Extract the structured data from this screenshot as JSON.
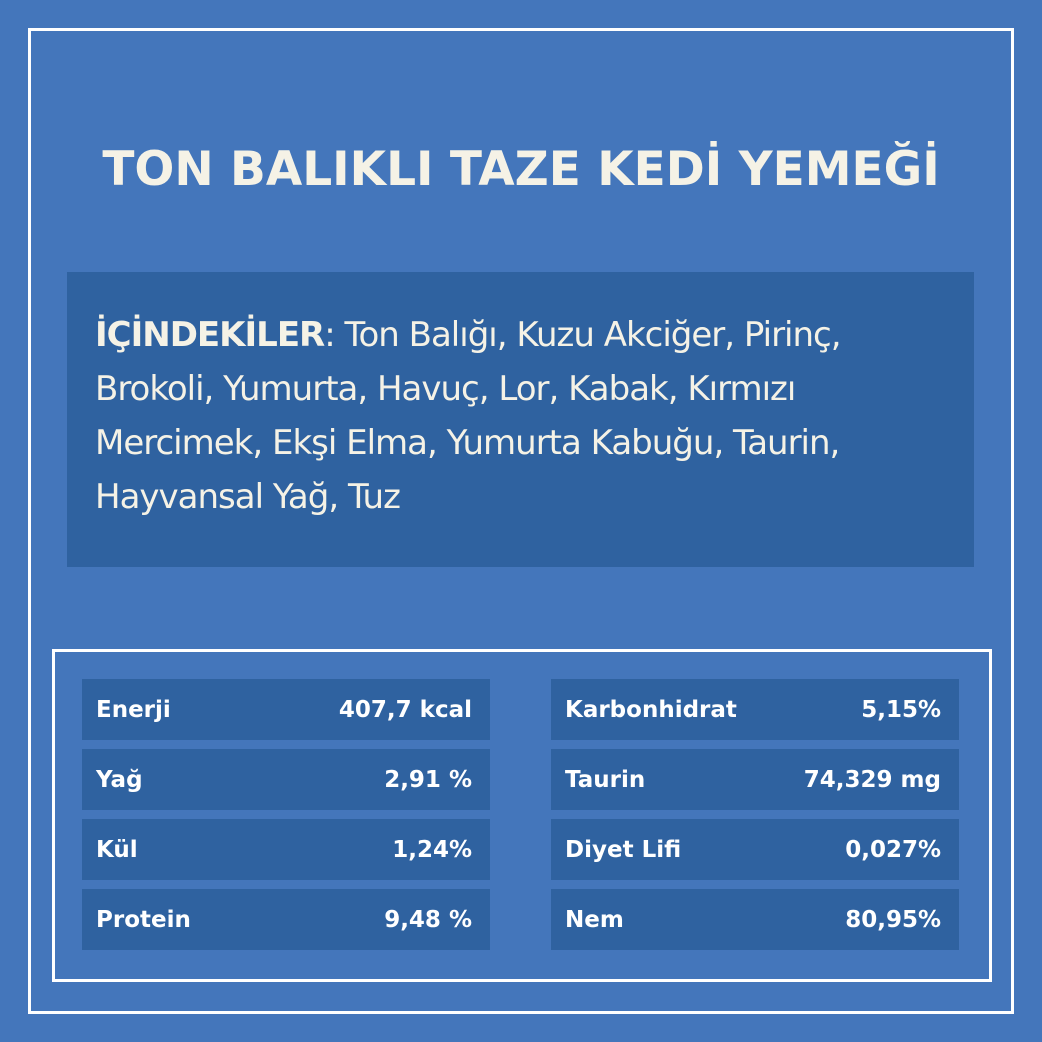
{
  "title": "TON BALIKLI TAZE KEDİ YEMEĞİ",
  "ingredients": {
    "label": "İÇİNDEKİLER",
    "text": ": Ton Balığı, Kuzu Akciğer, Pirinç, Brokoli, Yumurta, Havuç, Lor, Kabak, Kırmızı Mercimek, Ekşi Elma, Yumurta Kabuğu, Taurin, Hayvansal Yağ, Tuz"
  },
  "nutrition": {
    "left": [
      {
        "label": "Enerji",
        "value": "407,7 kcal"
      },
      {
        "label": "Yağ",
        "value": "2,91 %"
      },
      {
        "label": "Kül",
        "value": "1,24%"
      },
      {
        "label": "Protein",
        "value": "9,48 %"
      }
    ],
    "right": [
      {
        "label": "Karbonhidrat",
        "value": "5,15%"
      },
      {
        "label": "Taurin",
        "value": "74,329 mg"
      },
      {
        "label": "Diyet Lifi",
        "value": "0,027%"
      },
      {
        "label": "Nem",
        "value": "80,95%"
      }
    ]
  },
  "colors": {
    "background": "#4476BB",
    "panel": "#2F62A0",
    "title": "#F5F2E6"
  }
}
